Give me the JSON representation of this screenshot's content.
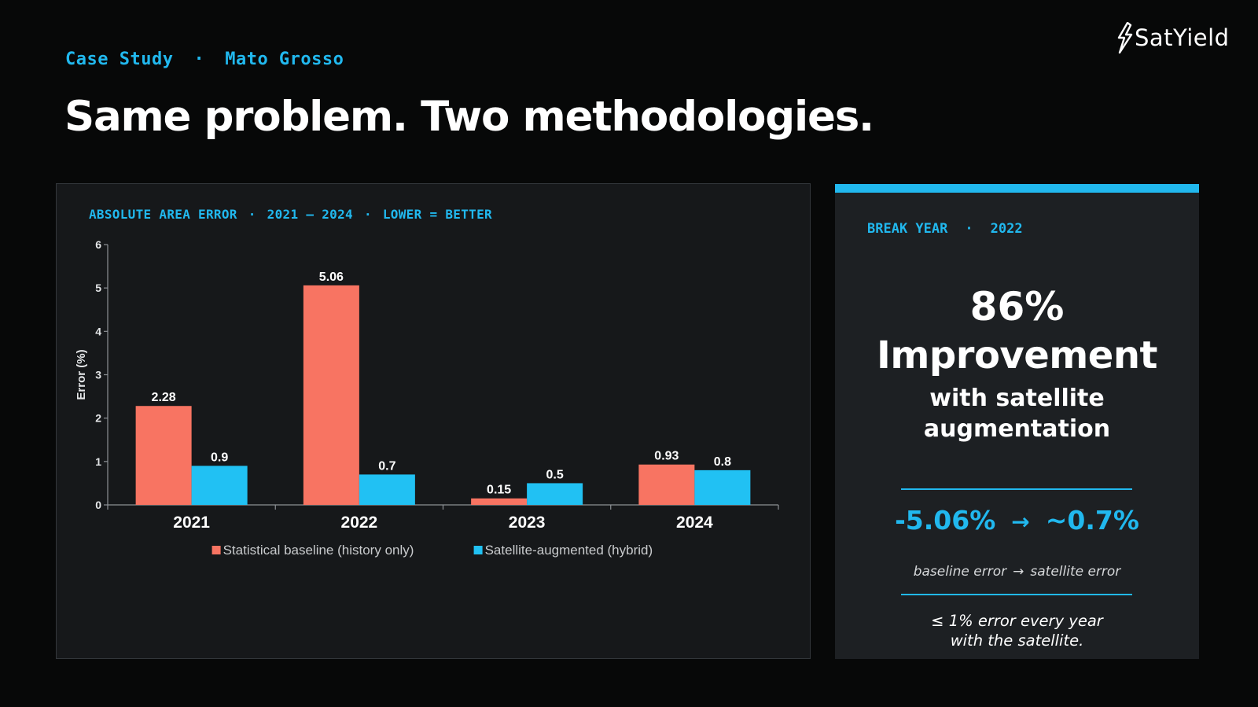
{
  "header": {
    "eyebrow_left": "Case Study",
    "eyebrow_separator": "·",
    "eyebrow_right": "Mato Grosso",
    "title": "Same problem. Two methodologies."
  },
  "logo": {
    "text": "SatYield",
    "icon": "satellite-bolt-logo-icon"
  },
  "chart_panel": {
    "caption_parts": [
      "ABSOLUTE AREA ERROR",
      "2021 – 2024",
      "LOWER = BETTER"
    ],
    "caption_separator": "·"
  },
  "chart_data": {
    "type": "bar",
    "title": "",
    "xlabel": "",
    "ylabel": "Error (%)",
    "categories": [
      "2021",
      "2022",
      "2023",
      "2024"
    ],
    "series": [
      {
        "name": "Statistical baseline (history only)",
        "color": "#f87462",
        "values": [
          2.28,
          5.06,
          0.15,
          0.93
        ],
        "labels": [
          "2.28",
          "5.06",
          "0.15",
          "0.93"
        ]
      },
      {
        "name": "Satellite-augmented (hybrid)",
        "color": "#21c1f3",
        "values": [
          0.9,
          0.7,
          0.5,
          0.8
        ],
        "labels": [
          "0.9",
          "0.7",
          "0.5",
          "0.8"
        ]
      }
    ],
    "ylim": [
      0,
      6
    ],
    "yticks": [
      "0",
      "1",
      "2",
      "3",
      "4",
      "5",
      "6"
    ],
    "grid": false,
    "legend_position": "bottom"
  },
  "side_panel": {
    "eyebrow_left": "BREAK YEAR",
    "eyebrow_separator": "·",
    "eyebrow_right": "2022",
    "improvement_value": "86%",
    "improvement_label": "Improvement",
    "sub_line1": "with satellite",
    "sub_line2": "augmentation",
    "from_value": "-5.06%",
    "arrow": "→",
    "to_value": "~0.7%",
    "caption_from": "baseline error",
    "caption_arrow": "→",
    "caption_to": "satellite error",
    "footnote_line1": "≤ 1% error every year",
    "footnote_line2": "with the satellite."
  },
  "colors": {
    "accent": "#21b8ee",
    "baseline": "#f87462",
    "satellite": "#21c1f3",
    "background": "#070808",
    "panel": "#1d2023"
  }
}
